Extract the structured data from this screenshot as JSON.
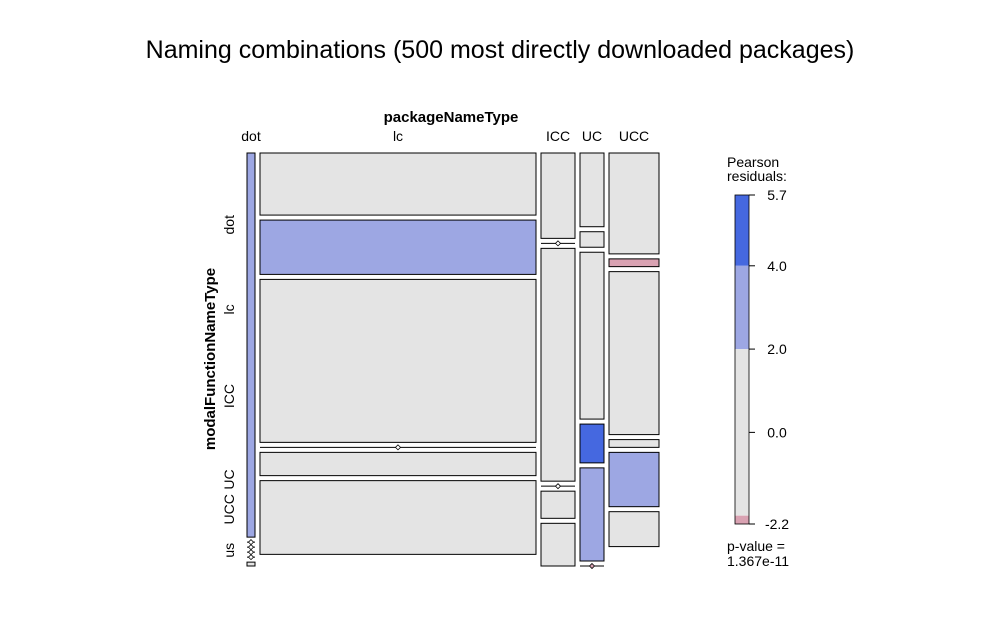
{
  "chart_data": {
    "type": "mosaic",
    "title": "Naming combinations (500 most directly downloaded packages)",
    "xlabel": "packageNameType",
    "ylabel": "modalFunctionNameType",
    "x_categories": [
      "dot",
      "lc",
      "ICC",
      "UC",
      "UCC"
    ],
    "y_categories": [
      "dot",
      "lc",
      "ICC",
      "UC",
      "UCC",
      "us"
    ],
    "cells": {
      "dot": {
        "dot": 0.99,
        "lc": 0.0,
        "ICC": 0.0,
        "UC": 0.0,
        "UCC": 0.0,
        "us": 0.01
      },
      "lc": {
        "dot": 0.16,
        "lc": 0.14,
        "ICC": 0.42,
        "UC": 0.0,
        "UCC": 0.06,
        "us": 0.19
      },
      "ICC": {
        "dot": 0.22,
        "lc": 0.0,
        "ICC": 0.6,
        "UC": 0.0,
        "UCC": 0.07,
        "us": 0.11
      },
      "UC": {
        "dot": 0.19,
        "lc": 0.04,
        "ICC": 0.43,
        "UC": 0.1,
        "UCC": 0.24,
        "us": 0.0
      },
      "UCC": {
        "dot": 0.26,
        "lc": 0.02,
        "ICC": 0.42,
        "UC": 0.02,
        "UCC": 0.14,
        "us": 0.09
      }
    },
    "residual_class": {
      "dot": {
        "dot": "pos1",
        "lc": "neutral",
        "ICC": "neutral",
        "UC": "neutral",
        "UCC": "neutral",
        "us": "neutral"
      },
      "lc": {
        "dot": "neutral",
        "lc": "pos1",
        "ICC": "neutral",
        "UC": "neutral",
        "UCC": "neutral",
        "us": "neutral"
      },
      "ICC": {
        "dot": "neutral",
        "lc": "neutral",
        "ICC": "neutral",
        "UC": "neutral",
        "UCC": "neutral",
        "us": "neutral"
      },
      "UC": {
        "dot": "neutral",
        "lc": "neutral",
        "ICC": "neutral",
        "UC": "pos2",
        "UCC": "pos1",
        "us": "neg1"
      },
      "UCC": {
        "dot": "neutral",
        "lc": "neg1",
        "ICC": "neutral",
        "UC": "neutral",
        "UCC": "pos1",
        "us": "neutral"
      }
    },
    "legend": {
      "title": "Pearson\nresiduals:",
      "ticks": [
        5.7,
        4.0,
        2.0,
        0.0,
        -2.2
      ],
      "tick_labels": [
        "5.7",
        "4.0",
        "2.0",
        "0.0",
        "-2.2"
      ],
      "range": [
        -2.2,
        5.7
      ],
      "bands": [
        {
          "from": 4.0,
          "to": 5.7,
          "color": "#4568e0"
        },
        {
          "from": 2.0,
          "to": 4.0,
          "color": "#9da7e3"
        },
        {
          "from": -2.0,
          "to": 2.0,
          "color": "#e4e4e4"
        },
        {
          "from": -2.2,
          "to": -2.0,
          "color": "#d9a2b2"
        }
      ],
      "pvalue_label": "p-value =",
      "pvalue": "1.367e-11"
    },
    "colors": {
      "pos2": "#4568e0",
      "pos1": "#9da7e3",
      "neutral": "#e4e4e4",
      "neg1": "#d9a2b2",
      "border": "#000000"
    }
  }
}
